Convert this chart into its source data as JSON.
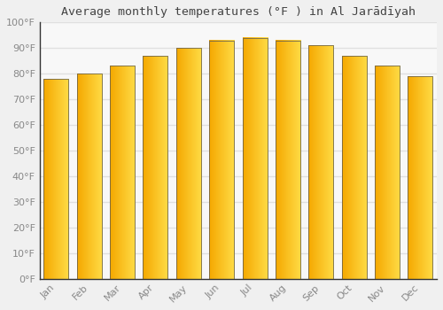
{
  "title": "Average monthly temperatures (°F ) in Al Jarādīyah",
  "months": [
    "Jan",
    "Feb",
    "Mar",
    "Apr",
    "May",
    "Jun",
    "Jul",
    "Aug",
    "Sep",
    "Oct",
    "Nov",
    "Dec"
  ],
  "values": [
    78,
    80,
    83,
    87,
    90,
    93,
    94,
    93,
    91,
    87,
    83,
    79
  ],
  "bar_color_left": "#F5A800",
  "bar_color_right": "#FFD84D",
  "bar_edge_color": "#555555",
  "yticks": [
    0,
    10,
    20,
    30,
    40,
    50,
    60,
    70,
    80,
    90,
    100
  ],
  "ytick_labels": [
    "0°F",
    "10°F",
    "20°F",
    "30°F",
    "40°F",
    "50°F",
    "60°F",
    "70°F",
    "80°F",
    "90°F",
    "100°F"
  ],
  "ylim": [
    0,
    100
  ],
  "background_color": "#f0f0f0",
  "plot_bg_color": "#f8f8f8",
  "grid_color": "#e0e0e0",
  "title_fontsize": 9.5,
  "tick_fontsize": 8,
  "tick_color": "#888888",
  "axis_color": "#333333",
  "bar_width": 0.75
}
